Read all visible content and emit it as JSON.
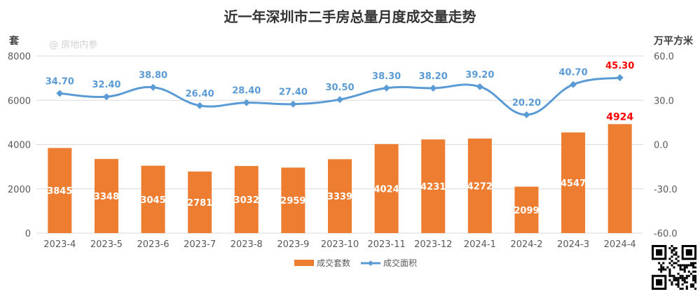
{
  "chart_data": {
    "type": "bar+line",
    "title": "近一年深圳市二手房总量月度成交量走势",
    "watermark": "@ 房地内参",
    "left_axis": {
      "label": "套",
      "min": 0,
      "max": 8000,
      "ticks": [
        "0",
        "2000",
        "4000",
        "6000",
        "8000"
      ]
    },
    "right_axis": {
      "label": "万平方米",
      "min": -60,
      "max": 60,
      "ticks": [
        "-60.0",
        "-30.0",
        "0.0",
        "30.0",
        "60.0"
      ]
    },
    "categories": [
      "2023-4",
      "2023-5",
      "2023-6",
      "2023-7",
      "2023-8",
      "2023-9",
      "2023-10",
      "2023-11",
      "2023-12",
      "2024-1",
      "2024-2",
      "2024-3",
      "2024-4"
    ],
    "series": [
      {
        "name": "成交套数",
        "type": "bar",
        "axis": "left",
        "color": "#ED7D31",
        "values": [
          3845,
          3348,
          3045,
          2781,
          3032,
          2959,
          3339,
          4024,
          4231,
          4272,
          2099,
          4547,
          4924
        ],
        "labels": [
          "3845",
          "3348",
          "3045",
          "2781",
          "3032",
          "2959",
          "3339",
          "4024",
          "4231",
          "4272",
          "2099",
          "4547",
          "4924"
        ]
      },
      {
        "name": "成交面积",
        "type": "line",
        "axis": "right",
        "color": "#5B9BD5",
        "values": [
          34.7,
          32.4,
          38.8,
          26.4,
          28.4,
          27.4,
          30.5,
          38.3,
          38.2,
          39.2,
          20.2,
          40.7,
          45.3
        ],
        "labels": [
          "34.70",
          "32.40",
          "38.80",
          "26.40",
          "28.40",
          "27.40",
          "30.50",
          "38.30",
          "38.20",
          "39.20",
          "20.20",
          "40.70",
          "45.30"
        ]
      }
    ],
    "highlight_color": "#FF0000",
    "grid": true,
    "legend": "bottom-center"
  }
}
